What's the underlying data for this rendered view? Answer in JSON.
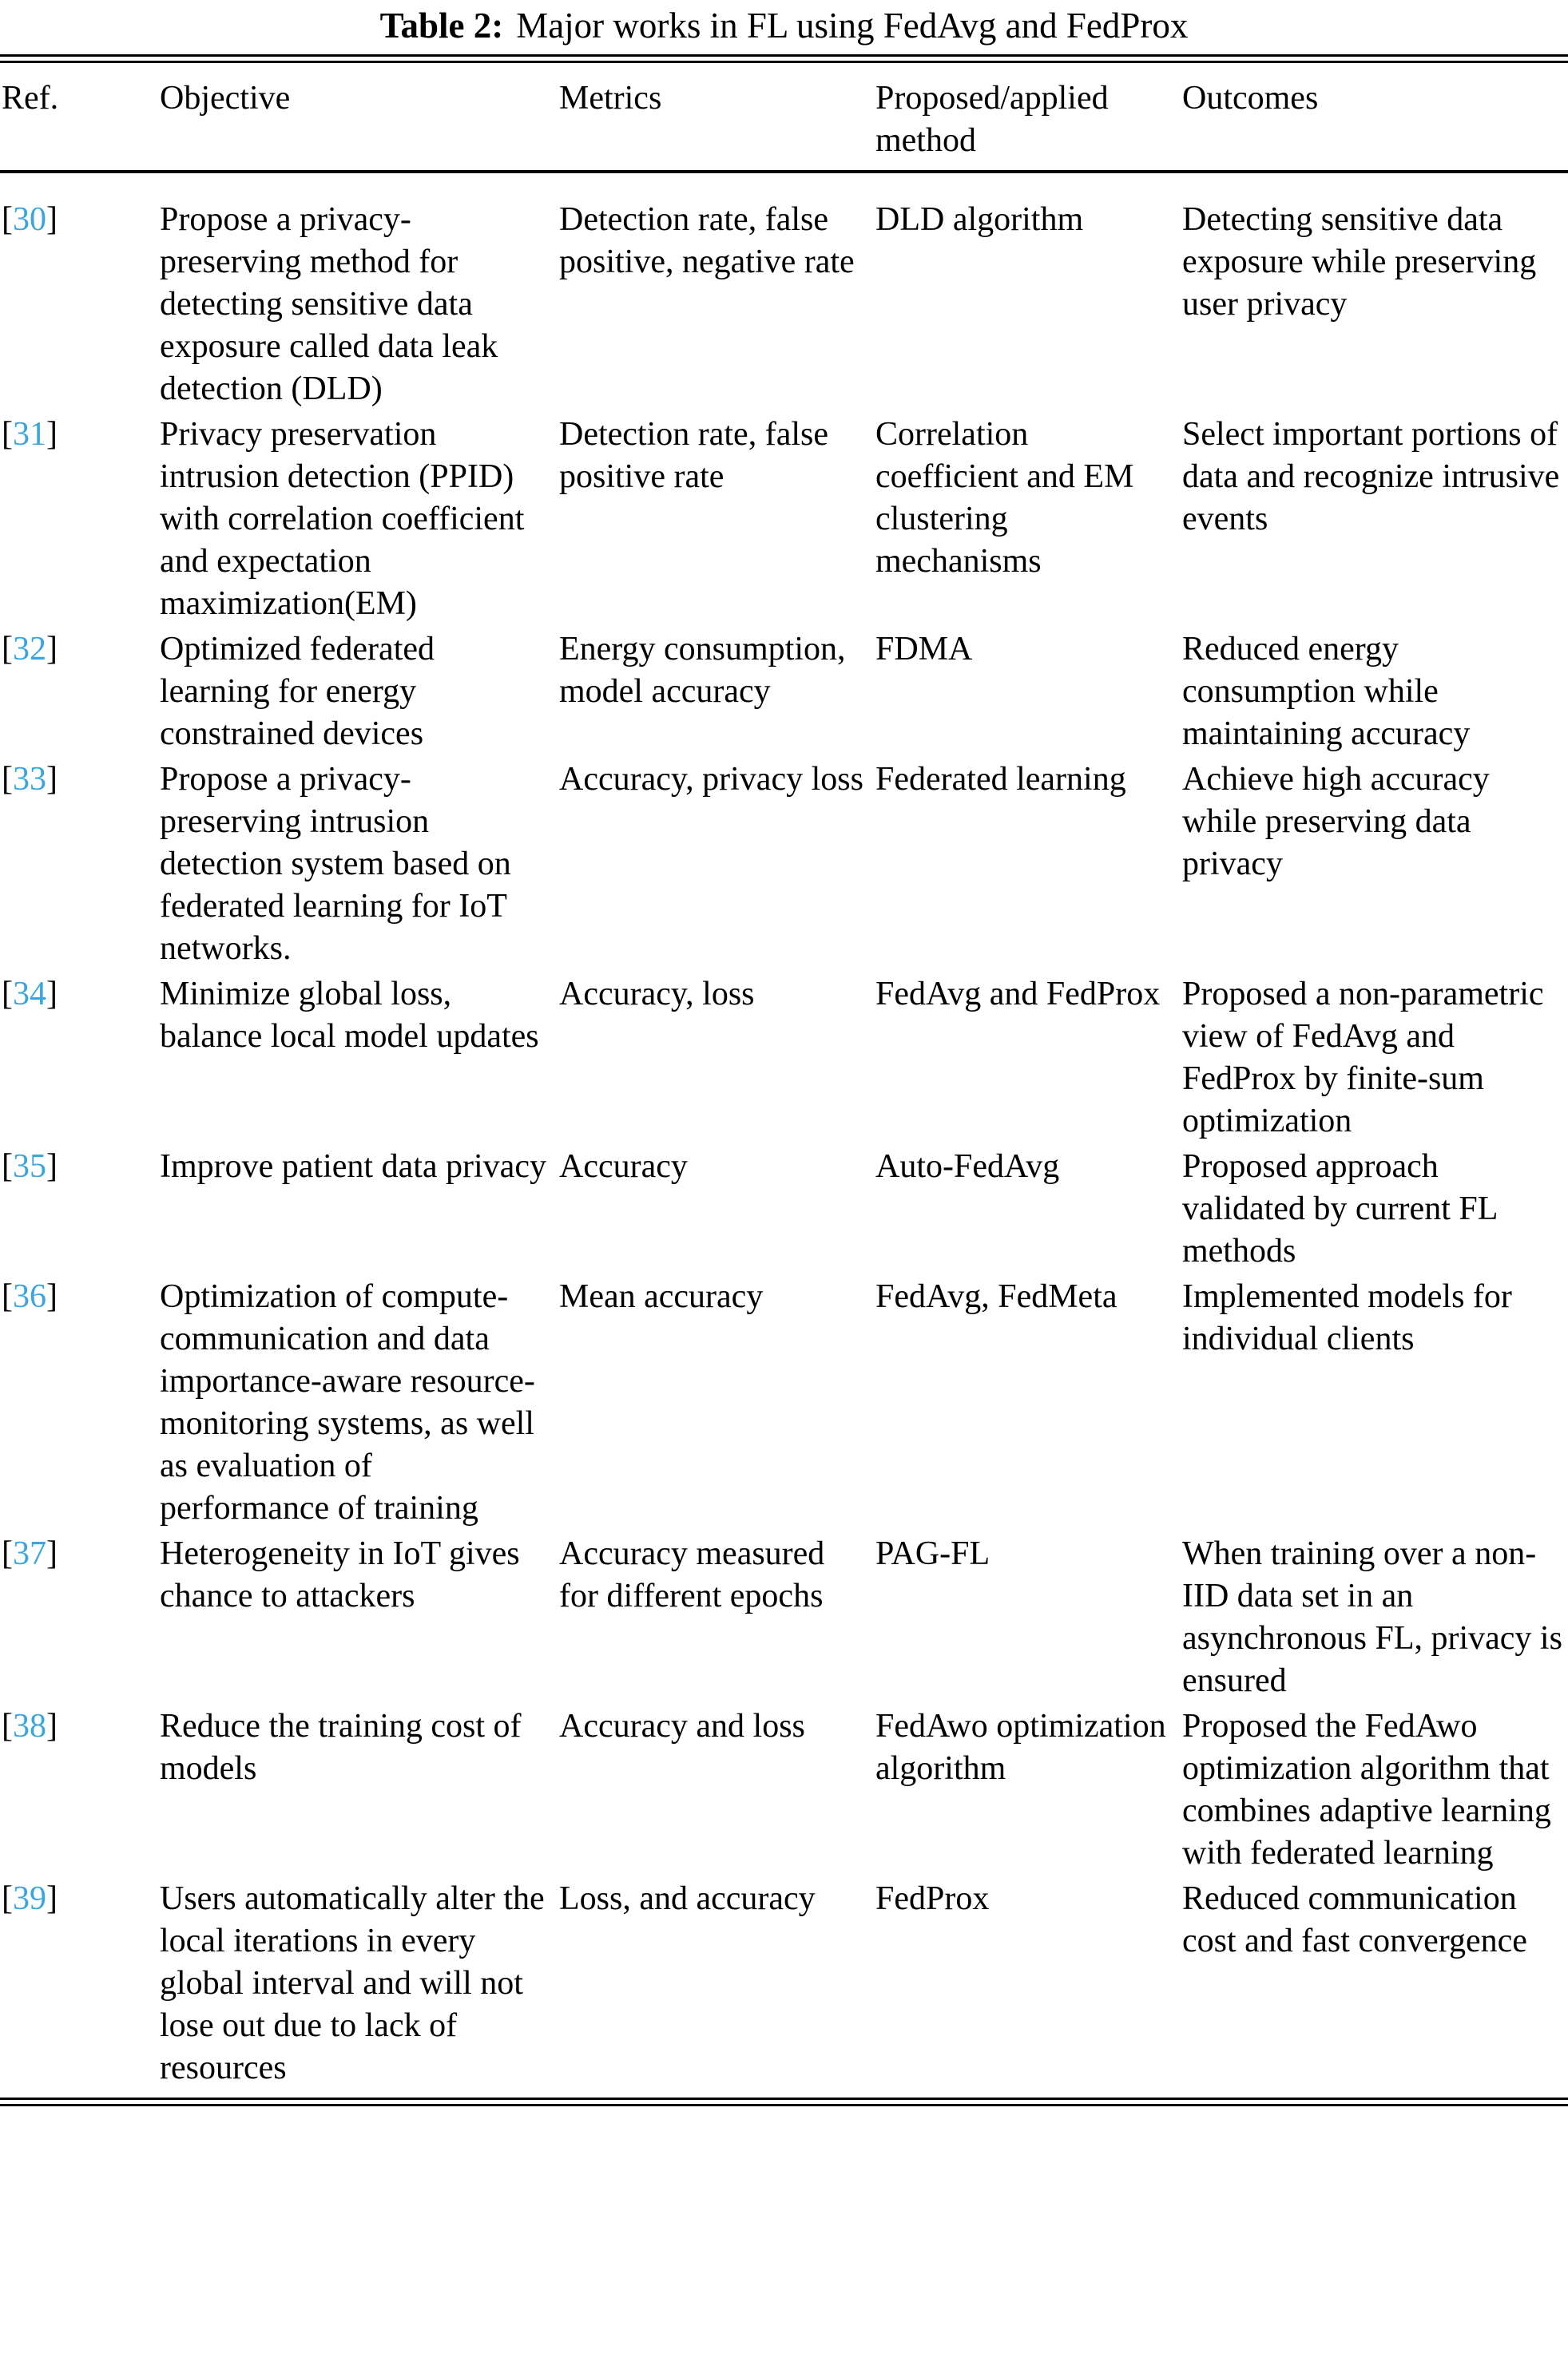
{
  "title": {
    "label": "Table 2:",
    "text": "Major works in FL using FedAvg and FedProx"
  },
  "columns": [
    "Ref.",
    "Objective",
    "Metrics",
    "Proposed/applied method",
    "Outcomes"
  ],
  "ref_brackets": {
    "open": "[",
    "close": "]"
  },
  "accent_color": "#3aa5de",
  "rows": [
    {
      "ref": "30",
      "objective": "Propose a privacy-preserving method for detecting sensitive data exposure called data leak detection (DLD)",
      "metrics": "Detection rate, false positive, negative rate",
      "method": "DLD algorithm",
      "outcomes": "Detecting sensitive data exposure while preserving user privacy"
    },
    {
      "ref": "31",
      "objective": "Privacy preservation intrusion detection (PPID) with correlation coefficient and expectation maximization(EM)",
      "metrics": "Detection rate, false positive rate",
      "method": "Correlation coefficient and EM clustering mechanisms",
      "outcomes": "Select important portions of data and recognize intrusive events"
    },
    {
      "ref": "32",
      "objective": "Optimized federated learning for energy constrained devices",
      "metrics": "Energy consumption, model accuracy",
      "method": "FDMA",
      "outcomes": "Reduced energy consumption while maintaining accuracy"
    },
    {
      "ref": "33",
      "objective": "Propose a privacy-preserving intrusion detection system based on federated learning for IoT networks.",
      "metrics": "Accuracy, privacy loss",
      "method": "Federated learning",
      "outcomes": "Achieve high accuracy while preserving data privacy"
    },
    {
      "ref": "34",
      "objective": "Minimize global loss, balance local model updates",
      "metrics": "Accuracy, loss",
      "method": "FedAvg and FedProx",
      "outcomes": "Proposed a non-parametric view of FedAvg and FedProx by finite-sum optimization"
    },
    {
      "ref": "35",
      "objective": "Improve patient data privacy",
      "metrics": "Accuracy",
      "method": "Auto-FedAvg",
      "outcomes": "Proposed approach validated by current FL methods"
    },
    {
      "ref": "36",
      "objective": "Optimization of compute-communication and data importance-aware resource-monitoring systems, as well as evaluation of performance of training",
      "metrics": "Mean accuracy",
      "method": "FedAvg, FedMeta",
      "outcomes": "Implemented models for individual clients"
    },
    {
      "ref": "37",
      "objective": "Heterogeneity in IoT gives chance to attackers",
      "metrics": "Accuracy measured for different epochs",
      "method": "PAG-FL",
      "outcomes": "When training over a non-IID data set in an asynchronous FL, privacy is ensured"
    },
    {
      "ref": "38",
      "objective": "Reduce the training cost of models",
      "metrics": "Accuracy and loss",
      "method": "FedAwo optimization algorithm",
      "outcomes": "Proposed the FedAwo optimization algorithm that combines adaptive learning with federated learning"
    },
    {
      "ref": "39",
      "objective": "Users automatically alter the local iterations in every global interval and will not lose out due to lack of resources",
      "metrics": "Loss, and accuracy",
      "method": "FedProx",
      "outcomes": "Reduced communication cost and fast convergence"
    }
  ]
}
